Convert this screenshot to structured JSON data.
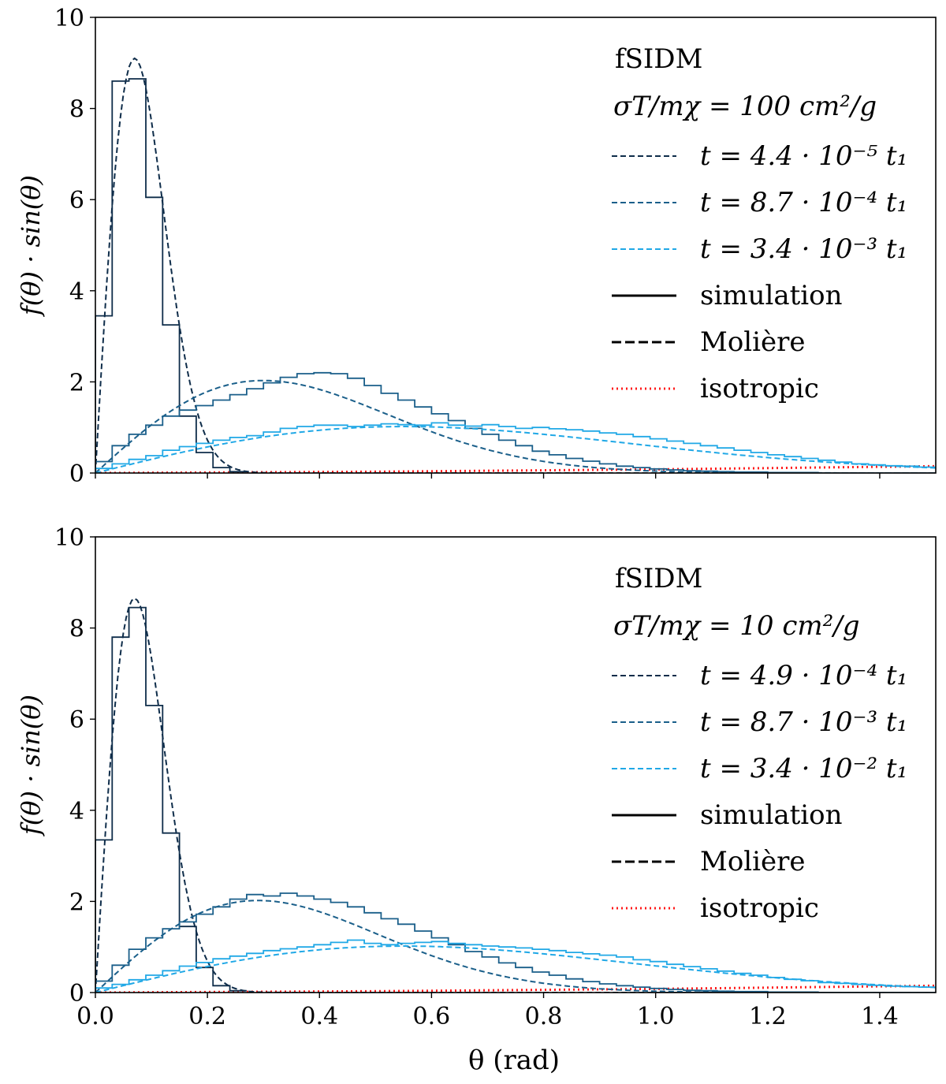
{
  "colors": {
    "dark": "#0f2d4a",
    "mid": "#1a5f8a",
    "light": "#20a8e6",
    "isotropic": "#ff1a1a",
    "legend_black": "#000000"
  },
  "shared": {
    "xlabel": "θ (rad)",
    "ylabel": "f(θ) · sin(θ)",
    "xticks": [
      "0.0",
      "0.2",
      "0.4",
      "0.6",
      "0.8",
      "1.0",
      "1.2",
      "1.4"
    ],
    "yticks": [
      "0",
      "2",
      "4",
      "6",
      "8",
      "10"
    ]
  },
  "chart_data": [
    {
      "type": "line",
      "xlim": [
        0,
        1.5
      ],
      "ylim": [
        0,
        10
      ],
      "grid": false,
      "legend_placement": "top-right",
      "legend_title": "fSIDM",
      "legend_subtitle": "σT/mχ = 100 cm²/g",
      "legend_entries": [
        {
          "label": "t = 4.4 · 10⁻⁵ t₁",
          "style": "dashed",
          "color_key": "dark"
        },
        {
          "label": "t = 8.7 · 10⁻⁴ t₁",
          "style": "dashed",
          "color_key": "mid"
        },
        {
          "label": "t = 3.4 · 10⁻³ t₁",
          "style": "dashed",
          "color_key": "light"
        },
        {
          "label": "simulation",
          "style": "solid",
          "color_key": "legend_black"
        },
        {
          "label": "Molière",
          "style": "dashed",
          "color_key": "legend_black"
        },
        {
          "label": "isotropic",
          "style": "dotted",
          "color_key": "isotropic"
        }
      ],
      "series": [
        {
          "name": "t = 4.4 · 10⁻⁵ t₁",
          "color_key": "dark",
          "peak_theta": 0.07,
          "peak_value": 9.1,
          "sim_bin_width": 0.03,
          "sim_values": [
            3.45,
            8.6,
            8.65,
            6.05,
            3.25,
            1.25,
            0.45,
            0.12,
            0.03
          ]
        },
        {
          "name": "t = 8.7 · 10⁻⁴ t₁",
          "color_key": "mid",
          "peak_theta": 0.3,
          "peak_value": 2.03,
          "sim_bin_width": 0.03,
          "sim_values": [
            0.25,
            0.6,
            0.85,
            1.05,
            1.25,
            1.38,
            1.48,
            1.6,
            1.72,
            1.85,
            1.98,
            2.1,
            2.18,
            2.2,
            2.18,
            2.08,
            1.92,
            1.75,
            1.6,
            1.45,
            1.3,
            1.15,
            0.98,
            0.85,
            0.72,
            0.6,
            0.48,
            0.4,
            0.32,
            0.26,
            0.2,
            0.15,
            0.12,
            0.09,
            0.07,
            0.05,
            0.04,
            0.03,
            0.02,
            0.02,
            0.01,
            0.01,
            0.01,
            0.0,
            0.0,
            0.0,
            0.0,
            0.0,
            0.0,
            0.0
          ]
        },
        {
          "name": "t = 3.4 · 10⁻³ t₁",
          "color_key": "light",
          "peak_theta": 0.55,
          "peak_value": 1.02,
          "sim_bin_width": 0.03,
          "sim_values": [
            0.1,
            0.2,
            0.3,
            0.38,
            0.5,
            0.58,
            0.65,
            0.72,
            0.78,
            0.82,
            0.9,
            0.98,
            1.02,
            1.05,
            1.05,
            1.02,
            1.05,
            1.08,
            1.06,
            1.05,
            1.1,
            1.05,
            1.03,
            1.06,
            1.02,
            0.98,
            1.0,
            0.97,
            0.95,
            0.92,
            0.88,
            0.85,
            0.8,
            0.75,
            0.7,
            0.65,
            0.6,
            0.55,
            0.5,
            0.45,
            0.4,
            0.36,
            0.32,
            0.28,
            0.24,
            0.2,
            0.18,
            0.16,
            0.15,
            0.13
          ]
        }
      ],
      "isotropic": {
        "name": "isotropic",
        "points": [
          [
            0,
            0
          ],
          [
            0.5,
            0.03
          ],
          [
            1.0,
            0.08
          ],
          [
            1.5,
            0.15
          ]
        ]
      }
    },
    {
      "type": "line",
      "xlim": [
        0,
        1.5
      ],
      "ylim": [
        0,
        10
      ],
      "grid": false,
      "legend_placement": "top-right",
      "legend_title": "fSIDM",
      "legend_subtitle": "σT/mχ = 10 cm²/g",
      "legend_entries": [
        {
          "label": "t = 4.9 · 10⁻⁴ t₁",
          "style": "dashed",
          "color_key": "dark"
        },
        {
          "label": "t = 8.7 · 10⁻³ t₁",
          "style": "dashed",
          "color_key": "mid"
        },
        {
          "label": "t = 3.4 · 10⁻² t₁",
          "style": "dashed",
          "color_key": "light"
        },
        {
          "label": "simulation",
          "style": "solid",
          "color_key": "legend_black"
        },
        {
          "label": "Molière",
          "style": "dashed",
          "color_key": "legend_black"
        },
        {
          "label": "isotropic",
          "style": "dotted",
          "color_key": "isotropic"
        }
      ],
      "series": [
        {
          "name": "t = 4.9 · 10⁻⁴ t₁",
          "color_key": "dark",
          "peak_theta": 0.07,
          "peak_value": 8.65,
          "sim_bin_width": 0.03,
          "sim_values": [
            3.35,
            7.8,
            8.45,
            6.3,
            3.5,
            1.45,
            0.55,
            0.15,
            0.04
          ]
        },
        {
          "name": "t = 8.7 · 10⁻³ t₁",
          "color_key": "mid",
          "peak_theta": 0.29,
          "peak_value": 2.02,
          "sim_bin_width": 0.03,
          "sim_values": [
            0.25,
            0.6,
            0.95,
            1.2,
            1.4,
            1.55,
            1.72,
            1.88,
            2.05,
            2.15,
            2.12,
            2.18,
            2.12,
            2.05,
            1.98,
            1.88,
            1.75,
            1.62,
            1.5,
            1.35,
            1.2,
            1.05,
            0.9,
            0.78,
            0.65,
            0.55,
            0.45,
            0.38,
            0.3,
            0.24,
            0.19,
            0.15,
            0.12,
            0.09,
            0.07,
            0.05,
            0.04,
            0.03,
            0.02,
            0.02,
            0.01,
            0.01,
            0.01,
            0.0,
            0.0,
            0.0,
            0.0,
            0.0,
            0.0,
            0.0
          ]
        },
        {
          "name": "t = 3.4 · 10⁻² t₁",
          "color_key": "light",
          "peak_theta": 0.55,
          "peak_value": 1.02,
          "sim_bin_width": 0.03,
          "sim_values": [
            0.1,
            0.18,
            0.28,
            0.38,
            0.48,
            0.58,
            0.66,
            0.74,
            0.8,
            0.86,
            0.92,
            0.96,
            1.0,
            1.05,
            1.1,
            1.15,
            1.08,
            1.05,
            1.08,
            1.1,
            1.12,
            1.08,
            1.05,
            1.02,
            1.0,
            0.98,
            0.95,
            0.92,
            0.88,
            0.85,
            0.82,
            0.78,
            0.72,
            0.68,
            0.62,
            0.57,
            0.52,
            0.47,
            0.42,
            0.38,
            0.33,
            0.29,
            0.26,
            0.22,
            0.2,
            0.18,
            0.16,
            0.14,
            0.13,
            0.12
          ]
        }
      ],
      "isotropic": {
        "name": "isotropic",
        "points": [
          [
            0,
            0
          ],
          [
            0.5,
            0.03
          ],
          [
            1.0,
            0.08
          ],
          [
            1.5,
            0.15
          ]
        ]
      }
    }
  ]
}
